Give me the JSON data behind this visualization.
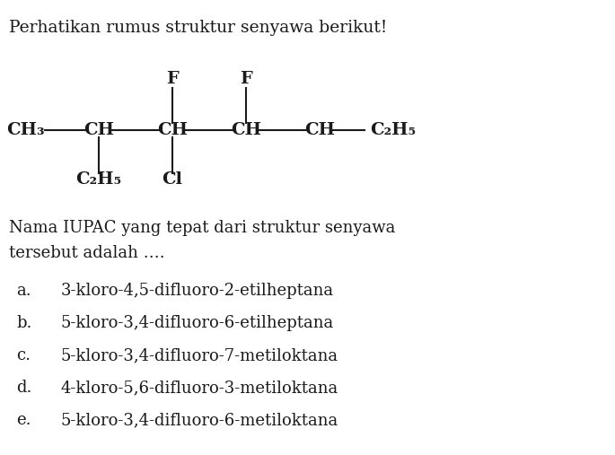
{
  "title": "Perhatikan rumus struktur senyawa berikut!",
  "question": "Nama IUPAC yang tepat dari struktur senyawa\ntersebut adalah ….",
  "choices": [
    {
      "label": "a.",
      "text": "3-kloro-4,5-difluoro-2-etilheptana"
    },
    {
      "label": "b.",
      "text": "5-kloro-3,4-difluoro-6-etilheptana"
    },
    {
      "label": "c.",
      "text": "5-kloro-3,4-difluoro-7-metiloktana"
    },
    {
      "label": "d.",
      "text": "4-kloro-5,6-difluoro-3-metiloktana"
    },
    {
      "label": "e.",
      "text": "5-kloro-3,4-difluoro-6-metiloktana"
    }
  ],
  "bg_color": "#ffffff",
  "text_color": "#1a1a1a",
  "chain_labels": [
    "CH₃",
    "CH",
    "CH",
    "CH",
    "CH",
    "C₂H₅"
  ],
  "F_chain_indices": [
    2,
    3
  ],
  "C2H5_chain_index": 1,
  "Cl_chain_index": 2,
  "title_fontsize": 13.5,
  "struct_fontsize": 14,
  "body_fontsize": 13,
  "choice_fontsize": 13
}
